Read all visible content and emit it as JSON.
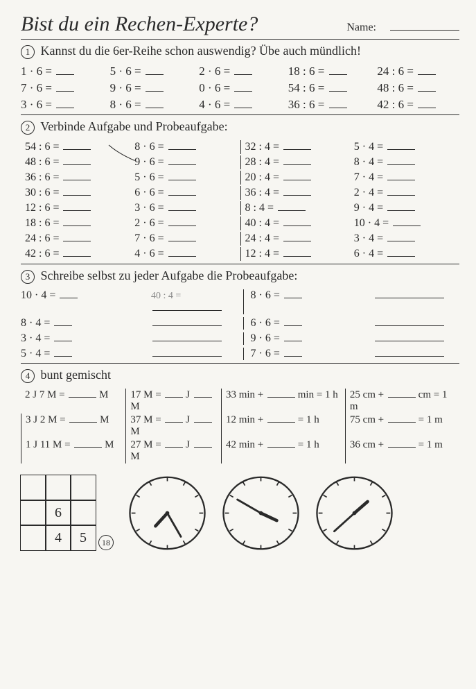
{
  "title": "Bist du ein Rechen-Experte?",
  "name_label": "Name:",
  "sections": {
    "s1": {
      "num": "1",
      "head": "Kannst du die 6er-Reihe schon auswendig? Übe auch mündlich!",
      "rows": [
        [
          "1 · 6 =",
          "5 · 6 =",
          "2 · 6 =",
          "18 : 6 =",
          "24 : 6 ="
        ],
        [
          "7 · 6 =",
          "9 · 6 =",
          "0 · 6 =",
          "54 : 6 =",
          "48 : 6 ="
        ],
        [
          "3 · 6 =",
          "8 · 6 =",
          "4 · 6 =",
          "36 : 6 =",
          "42 : 6 ="
        ]
      ]
    },
    "s2": {
      "num": "2",
      "head": "Verbinde Aufgabe und Probeaufgabe:",
      "rows": [
        [
          "54 : 6 =",
          "8 · 6 =",
          "32 : 4 =",
          "5 · 4 ="
        ],
        [
          "48 : 6 =",
          "9 · 6 =",
          "28 : 4 =",
          "8 · 4 ="
        ],
        [
          "36 : 6 =",
          "5 · 6 =",
          "20 : 4 =",
          "7 · 4 ="
        ],
        [
          "30 : 6 =",
          "6 · 6 =",
          "36 : 4 =",
          "2 · 4 ="
        ],
        [
          "12 : 6 =",
          "3 · 6 =",
          "8 : 4 =",
          "9 · 4 ="
        ],
        [
          "18 : 6 =",
          "2 · 6 =",
          "40 : 4 =",
          "10 · 4 ="
        ],
        [
          "24 : 6 =",
          "7 · 6 =",
          "24 : 4 =",
          "3 · 4 ="
        ],
        [
          "42 : 6 =",
          "4 · 6 =",
          "12 : 4 =",
          "6 · 4 ="
        ]
      ]
    },
    "s3": {
      "num": "3",
      "head": "Schreibe selbst zu jeder Aufgabe die Probeaufgabe:",
      "left": [
        "10 · 4 =",
        "8 · 4 =",
        "3 · 4 =",
        "5 · 4 ="
      ],
      "left_hint": "40 : 4 =",
      "right": [
        "8 · 6 =",
        "6 · 6 =",
        "9 · 6 =",
        "7 · 6 ="
      ]
    },
    "s4": {
      "num": "4",
      "head": "bunt gemischt",
      "rows": [
        [
          "2 J 7 M = ___ M",
          "17 M = __ J __ M",
          "33 min + ___ min = 1 h",
          "25 cm + ___ cm = 1 m"
        ],
        [
          "3 J 2 M = ___ M",
          "37 M = __ J __ M",
          "12 min + ______ = 1 h",
          "75 cm + ______ = 1 m"
        ],
        [
          "1 J 11 M = ___ M",
          "27 M = __ J __ M",
          "42 min + ______ = 1 h",
          "36 cm + ______ = 1 m"
        ]
      ]
    }
  },
  "grid": [
    "",
    "",
    "",
    "",
    "6",
    "",
    "",
    "4",
    "5"
  ],
  "page": "18",
  "clocks": [
    {
      "h": 7,
      "m": 25
    },
    {
      "h": 3,
      "m": 50
    },
    {
      "h": 1,
      "m": 38
    }
  ]
}
